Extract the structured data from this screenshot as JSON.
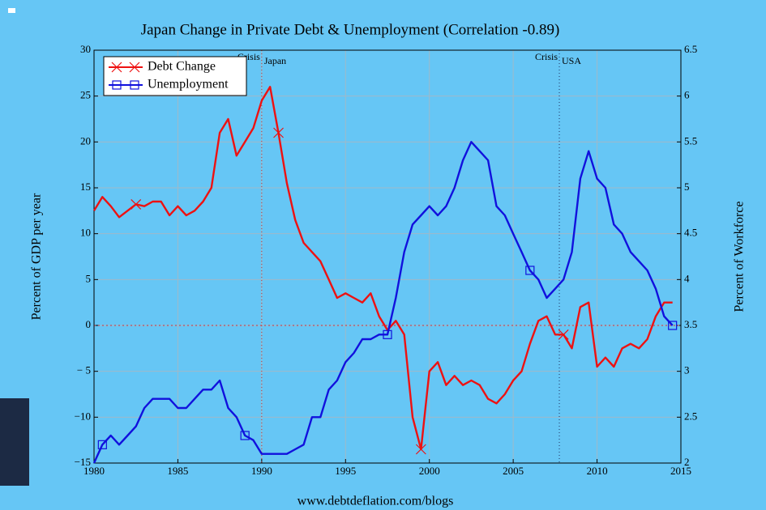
{
  "chart_data": {
    "type": "line",
    "title": "Japan Change in Private Debt & Unemployment (Correlation -0.89)",
    "ylabel": "Percent of GDP per year",
    "y2label": "Percent of Workforce",
    "footer": "www.debtdeflation.com/blogs",
    "legend": "upper left",
    "grid": true,
    "xlim": [
      1980,
      2015
    ],
    "xticks": [
      1980,
      1985,
      1990,
      1995,
      2000,
      2005,
      2010,
      2015
    ],
    "ylim": [
      -15,
      30
    ],
    "yticks": [
      {
        "value": -15,
        "label": "−15"
      },
      {
        "value": -10,
        "label": "−10"
      },
      {
        "value": -5,
        "label": "− 5"
      },
      0,
      5,
      10,
      15,
      20,
      25,
      30
    ],
    "y2lim": [
      2,
      6.5
    ],
    "y2ticks": [
      2,
      2.5,
      3,
      3.5,
      4,
      4.5,
      5,
      5.5,
      6,
      6.5
    ],
    "crisis_lines": [
      {
        "x": 1990,
        "label": "Crisis",
        "region": "Japan"
      },
      {
        "x": 2007.75,
        "label": "Crisis",
        "region": "USA"
      }
    ],
    "x": [
      1980,
      1980.5,
      1981,
      1981.5,
      1982,
      1982.5,
      1983,
      1983.5,
      1984,
      1984.5,
      1985,
      1985.5,
      1986,
      1986.5,
      1987,
      1987.5,
      1988,
      1988.5,
      1989,
      1989.5,
      1990,
      1990.5,
      1991,
      1991.5,
      1992,
      1992.5,
      1993,
      1993.5,
      1994,
      1994.5,
      1995,
      1995.5,
      1996,
      1996.5,
      1997,
      1997.5,
      1998,
      1998.5,
      1999,
      1999.5,
      2000,
      2000.5,
      2001,
      2001.5,
      2002,
      2002.5,
      2003,
      2003.5,
      2004,
      2004.5,
      2005,
      2005.5,
      2006,
      2006.5,
      2007,
      2007.5,
      2008,
      2008.5,
      2009,
      2009.5,
      2010,
      2010.5,
      2011,
      2011.5,
      2012,
      2012.5,
      2013,
      2013.5,
      2014,
      2014.5
    ],
    "series": [
      {
        "name": "Debt Change",
        "color": "#ee1111",
        "marker": "x",
        "values": [
          12.5,
          14,
          13,
          11.8,
          12.5,
          13.2,
          13,
          13.5,
          13.5,
          12,
          13,
          12,
          12.5,
          13.5,
          15,
          21,
          22.5,
          18.5,
          20,
          21.5,
          24.5,
          26,
          21,
          15.5,
          11.5,
          9,
          8,
          7,
          5,
          3,
          3.5,
          3,
          2.5,
          3.5,
          1,
          -0.5,
          0.5,
          -1,
          -10,
          -13.5,
          -5,
          -4,
          -6.5,
          -5.5,
          -6.5,
          -6,
          -6.5,
          -8,
          -8.5,
          -7.5,
          -6,
          -5,
          -2,
          0.5,
          1,
          -1,
          -1,
          -2.5,
          2,
          2.5,
          -4.5,
          -3.5,
          -4.5,
          -2.5,
          -2,
          -2.5,
          -1.5,
          1,
          2.5,
          2.5
        ]
      },
      {
        "name": "Unemployment",
        "color": "#1111dd",
        "marker": "square",
        "axis": "y2",
        "values": [
          2,
          2.2,
          2.3,
          2.2,
          2.3,
          2.4,
          2.6,
          2.7,
          2.7,
          2.7,
          2.6,
          2.6,
          2.7,
          2.8,
          2.8,
          2.9,
          2.6,
          2.5,
          2.3,
          2.25,
          2.1,
          2.1,
          2.1,
          2.1,
          2.15,
          2.2,
          2.5,
          2.5,
          2.8,
          2.9,
          3.1,
          3.2,
          3.35,
          3.35,
          3.4,
          3.4,
          3.8,
          4.3,
          4.6,
          4.7,
          4.8,
          4.7,
          4.8,
          5.0,
          5.3,
          5.5,
          5.4,
          5.3,
          4.8,
          4.7,
          4.5,
          4.3,
          4.1,
          4.0,
          3.8,
          3.9,
          4.0,
          4.3,
          5.1,
          5.4,
          5.1,
          5.0,
          4.6,
          4.5,
          4.3,
          4.2,
          4.1,
          3.9,
          3.6,
          3.5
        ]
      }
    ]
  }
}
